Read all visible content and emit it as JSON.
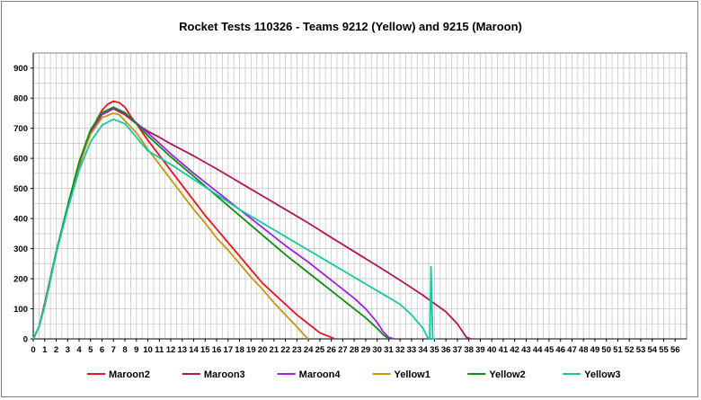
{
  "chart_data": {
    "type": "line",
    "title": "Rocket Tests 110326 - Teams 9212 (Yellow) and 9215 (Maroon)",
    "xlabel": "",
    "ylabel": "",
    "xlim": [
      0,
      57
    ],
    "ylim": [
      0,
      950
    ],
    "x_ticks": [
      0,
      1,
      2,
      3,
      4,
      5,
      6,
      7,
      8,
      9,
      10,
      11,
      12,
      13,
      14,
      15,
      16,
      17,
      18,
      19,
      20,
      21,
      22,
      23,
      24,
      25,
      26,
      27,
      28,
      29,
      30,
      31,
      32,
      33,
      34,
      35,
      36,
      37,
      38,
      39,
      40,
      41,
      42,
      43,
      44,
      45,
      46,
      47,
      48,
      49,
      50,
      51,
      52,
      53,
      54,
      55,
      56
    ],
    "y_ticks": [
      0,
      100,
      200,
      300,
      400,
      500,
      600,
      700,
      800,
      900
    ],
    "grid": true,
    "legend_position": "bottom",
    "series": [
      {
        "name": "Maroon2",
        "color": "#e8141e",
        "points": [
          [
            0,
            0
          ],
          [
            0.5,
            40
          ],
          [
            1,
            120
          ],
          [
            2,
            290
          ],
          [
            3,
            440
          ],
          [
            4,
            580
          ],
          [
            5,
            690
          ],
          [
            6,
            760
          ],
          [
            6.5,
            780
          ],
          [
            7,
            790
          ],
          [
            7.5,
            785
          ],
          [
            8,
            770
          ],
          [
            8.5,
            740
          ],
          [
            9,
            715
          ],
          [
            10,
            660
          ],
          [
            11,
            610
          ],
          [
            12,
            560
          ],
          [
            13,
            510
          ],
          [
            14,
            460
          ],
          [
            15,
            410
          ],
          [
            16,
            365
          ],
          [
            17,
            320
          ],
          [
            18,
            275
          ],
          [
            19,
            230
          ],
          [
            20,
            185
          ],
          [
            21,
            150
          ],
          [
            22,
            115
          ],
          [
            23,
            80
          ],
          [
            24,
            50
          ],
          [
            25,
            20
          ],
          [
            26,
            5
          ],
          [
            26.3,
            0
          ]
        ]
      },
      {
        "name": "Maroon3",
        "color": "#b1145a",
        "points": [
          [
            0,
            0
          ],
          [
            0.5,
            40
          ],
          [
            1,
            110
          ],
          [
            2,
            285
          ],
          [
            3,
            435
          ],
          [
            4,
            575
          ],
          [
            5,
            685
          ],
          [
            6,
            745
          ],
          [
            7,
            765
          ],
          [
            8,
            745
          ],
          [
            9,
            715
          ],
          [
            10,
            690
          ],
          [
            11,
            670
          ],
          [
            12,
            648
          ],
          [
            14,
            608
          ],
          [
            16,
            565
          ],
          [
            18,
            520
          ],
          [
            20,
            475
          ],
          [
            22,
            430
          ],
          [
            24,
            385
          ],
          [
            26,
            337
          ],
          [
            28,
            290
          ],
          [
            30,
            243
          ],
          [
            32,
            195
          ],
          [
            34,
            145
          ],
          [
            36,
            90
          ],
          [
            37,
            50
          ],
          [
            37.8,
            5
          ],
          [
            38.2,
            0
          ]
        ]
      },
      {
        "name": "Maroon4",
        "color": "#9b22e6",
        "points": [
          [
            0,
            0
          ],
          [
            0.5,
            40
          ],
          [
            1,
            110
          ],
          [
            2,
            285
          ],
          [
            3,
            440
          ],
          [
            4,
            585
          ],
          [
            5,
            690
          ],
          [
            6,
            745
          ],
          [
            7,
            768
          ],
          [
            8,
            750
          ],
          [
            9,
            718
          ],
          [
            10,
            685
          ],
          [
            12,
            615
          ],
          [
            14,
            550
          ],
          [
            16,
            490
          ],
          [
            18,
            430
          ],
          [
            20,
            370
          ],
          [
            22,
            310
          ],
          [
            24,
            255
          ],
          [
            26,
            195
          ],
          [
            28,
            135
          ],
          [
            29,
            100
          ],
          [
            30,
            55
          ],
          [
            30.5,
            25
          ],
          [
            31,
            5
          ],
          [
            31.5,
            0
          ]
        ]
      },
      {
        "name": "Yellow1",
        "color": "#c89614",
        "points": [
          [
            0,
            0
          ],
          [
            0.5,
            40
          ],
          [
            1,
            115
          ],
          [
            2,
            290
          ],
          [
            3,
            440
          ],
          [
            4,
            580
          ],
          [
            5,
            680
          ],
          [
            6,
            735
          ],
          [
            7,
            750
          ],
          [
            7.5,
            745
          ],
          [
            8,
            725
          ],
          [
            9,
            685
          ],
          [
            10,
            630
          ],
          [
            11,
            580
          ],
          [
            12,
            530
          ],
          [
            13,
            480
          ],
          [
            14,
            430
          ],
          [
            15,
            385
          ],
          [
            16,
            335
          ],
          [
            17,
            295
          ],
          [
            18,
            250
          ],
          [
            19,
            205
          ],
          [
            20,
            165
          ],
          [
            21,
            120
          ],
          [
            22,
            80
          ],
          [
            23,
            40
          ],
          [
            23.7,
            10
          ],
          [
            24,
            0
          ]
        ]
      },
      {
        "name": "Yellow2",
        "color": "#138a13",
        "points": [
          [
            0,
            0
          ],
          [
            0.5,
            40
          ],
          [
            1,
            112
          ],
          [
            2,
            288
          ],
          [
            3,
            442
          ],
          [
            4,
            588
          ],
          [
            5,
            695
          ],
          [
            6,
            752
          ],
          [
            7,
            770
          ],
          [
            8,
            752
          ],
          [
            9,
            715
          ],
          [
            10,
            675
          ],
          [
            12,
            605
          ],
          [
            14,
            540
          ],
          [
            16,
            475
          ],
          [
            18,
            410
          ],
          [
            20,
            345
          ],
          [
            22,
            280
          ],
          [
            24,
            220
          ],
          [
            26,
            160
          ],
          [
            28,
            100
          ],
          [
            29,
            70
          ],
          [
            30,
            35
          ],
          [
            30.5,
            15
          ],
          [
            31,
            0
          ]
        ]
      },
      {
        "name": "Yellow3",
        "color": "#14c8a0",
        "points": [
          [
            0,
            0
          ],
          [
            0.5,
            40
          ],
          [
            1,
            110
          ],
          [
            2,
            285
          ],
          [
            3,
            430
          ],
          [
            4,
            560
          ],
          [
            5,
            655
          ],
          [
            6,
            710
          ],
          [
            7,
            730
          ],
          [
            8,
            715
          ],
          [
            9,
            670
          ],
          [
            10,
            625
          ],
          [
            12,
            580
          ],
          [
            14,
            530
          ],
          [
            16,
            480
          ],
          [
            18,
            430
          ],
          [
            20,
            385
          ],
          [
            22,
            340
          ],
          [
            24,
            295
          ],
          [
            26,
            250
          ],
          [
            28,
            205
          ],
          [
            30,
            160
          ],
          [
            32,
            115
          ],
          [
            33,
            80
          ],
          [
            34,
            35
          ],
          [
            34.4,
            5
          ],
          [
            34.6,
            0
          ],
          [
            34.7,
            240
          ],
          [
            34.85,
            0
          ],
          [
            35.2,
            0
          ]
        ]
      }
    ]
  }
}
